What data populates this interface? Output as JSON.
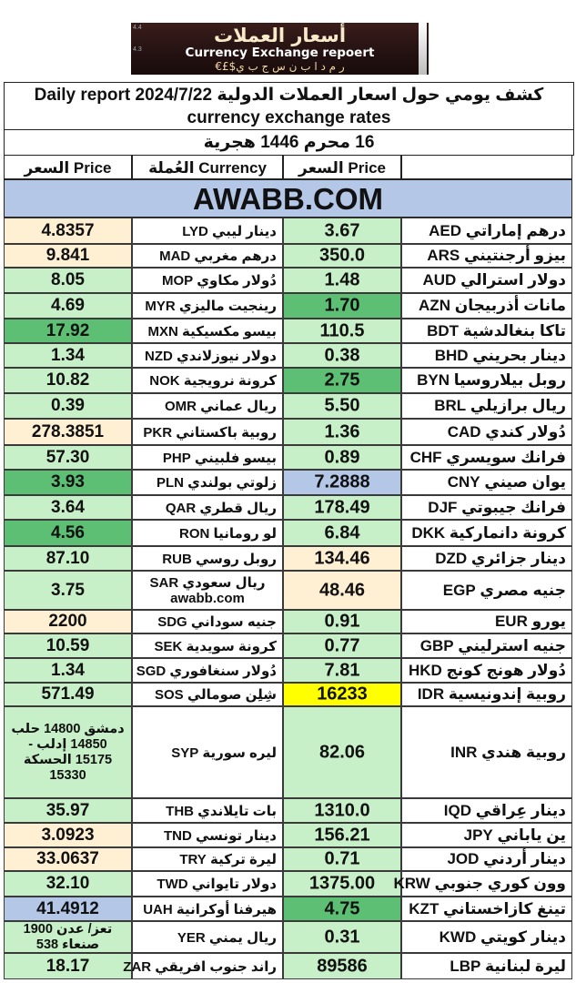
{
  "logo": {
    "arabic": "أسعار العملات",
    "english": "Currency Exchange repoert",
    "subline": "€£$ر م د ا ب ن س ج ب ي",
    "corner_top": "4.4",
    "corner_bottom": "4.3"
  },
  "title": {
    "line1": "كشف يومي حول اسعار العملات الدولية Daily report 2024/7/22",
    "line2": "currency exchange rates"
  },
  "hijri_date": "16 محرم  1446 هجرية",
  "headers": {
    "price_left": "السعر Price",
    "currency_left": "العُملة Currency",
    "price_right": "السعر Price"
  },
  "banner": "AWABB.COM",
  "colors": {
    "green": "#5cbf73",
    "light_green": "#c8f0c8",
    "peach": "#fff0d4",
    "yellow": "#ffff00",
    "blue": "#b4c7e7",
    "white": "#ffffff"
  },
  "rows": [
    {
      "r_cur": "درهم إماراتي  AED",
      "r_price": "3.67",
      "r_bg": "light_green",
      "l_cur": "دينار ليبي  LYD",
      "l_price": "4.8357",
      "l_bg": "peach"
    },
    {
      "r_cur": "بيزو أرجنتيني  ARS",
      "r_price": "350.0",
      "r_bg": "light_green",
      "l_cur": "درهم مغربي  MAD",
      "l_price": "9.841",
      "l_bg": "peach"
    },
    {
      "r_cur": "دولار استرالي  AUD",
      "r_price": "1.48",
      "r_bg": "light_green",
      "l_cur": "دُولار مكاوي  MOP",
      "l_price": "8.05",
      "l_bg": "light_green"
    },
    {
      "r_cur": "مانات أذربيجان  AZN",
      "r_price": "1.70",
      "r_bg": "green",
      "l_cur": "رينجيت ماليزي  MYR",
      "l_price": "4.69",
      "l_bg": "light_green"
    },
    {
      "r_cur": "تاكا بنغالدشية  BDT",
      "r_price": "110.5",
      "r_bg": "light_green",
      "l_cur": "بيسو مكسيكية  MXN",
      "l_price": "17.92",
      "l_bg": "green"
    },
    {
      "r_cur": "دينار بحريني  BHD",
      "r_price": "0.38",
      "r_bg": "light_green",
      "l_cur": "دولار نيوزلاندي NZD",
      "l_price": "1.34",
      "l_bg": "light_green"
    },
    {
      "r_cur": "روبل بيلاروسيا  BYN",
      "r_price": "2.75",
      "r_bg": "green",
      "l_cur": "كرونة نرويجية  NOK",
      "l_price": "10.82",
      "l_bg": "light_green"
    },
    {
      "r_cur": "ريال برازيلي  BRL",
      "r_price": "5.50",
      "r_bg": "light_green",
      "l_cur": "ريال عماني  OMR",
      "l_price": "0.39",
      "l_bg": "light_green"
    },
    {
      "r_cur": "دُولار كندي  CAD",
      "r_price": "1.36",
      "r_bg": "light_green",
      "l_cur": "روبية باكستاني  PKR",
      "l_price": "278.3851",
      "l_bg": "peach"
    },
    {
      "r_cur": "فرانك سويسري  CHF",
      "r_price": "0.89",
      "r_bg": "light_green",
      "l_cur": "بيسو فلبيني  PHP",
      "l_price": "57.30",
      "l_bg": "light_green"
    },
    {
      "r_cur": "يوان صيني  CNY",
      "r_price": "7.2888",
      "r_bg": "blue",
      "l_cur": "زلوتي بولندي  PLN",
      "l_price": "3.93",
      "l_bg": "green"
    },
    {
      "r_cur": "فرانك جيبوتي  DJF",
      "r_price": "178.49",
      "r_bg": "light_green",
      "l_cur": "ريال قطري  QAR",
      "l_price": "3.64",
      "l_bg": "light_green"
    },
    {
      "r_cur": "كرونة دانماركية  DKK",
      "r_price": "6.84",
      "r_bg": "light_green",
      "l_cur": "لو رومانيا  RON",
      "l_price": "4.56",
      "l_bg": "green"
    },
    {
      "r_cur": "دينار جزائري  DZD",
      "r_price": "134.46",
      "r_bg": "peach",
      "l_cur": "روبل روسي  RUB",
      "l_price": "87.10",
      "l_bg": "light_green"
    },
    {
      "r_cur": "جنيه مصري  EGP",
      "r_price": "48.46",
      "r_bg": "peach",
      "l_cur": "ريال سعودي  SAR\nawabb.com",
      "l_price": "3.75",
      "l_bg": "light_green"
    },
    {
      "r_cur": "يورو  EUR",
      "r_price": "0.91",
      "r_bg": "light_green",
      "l_cur": "جنيه سوداني  SDG",
      "l_price": "2200",
      "l_bg": "peach"
    },
    {
      "r_cur": "جنيه استرليني  GBP",
      "r_price": "0.77",
      "r_bg": "light_green",
      "l_cur": "كرونة سويدية  SEK",
      "l_price": "10.59",
      "l_bg": "light_green"
    },
    {
      "r_cur": "دُولار هونج كونج  HKD",
      "r_price": "7.81",
      "r_bg": "light_green",
      "l_cur": "دُولار سنغافوري  SGD",
      "l_price": "1.34",
      "l_bg": "light_green"
    },
    {
      "r_cur": "روبية إندونيسية  IDR",
      "r_price": "16233",
      "r_bg": "yellow",
      "l_cur": "شِلِن صومالي  SOS",
      "l_price": "571.49",
      "l_bg": "light_green"
    },
    {
      "r_cur": "روبية هندي  INR",
      "r_price": "82.06",
      "r_bg": "light_green",
      "l_cur": "ليره سورية  SYP",
      "l_price": "دمشق 14800 حلب\n14850 إدلب -\n15175 الحسكة\n15330",
      "l_bg": "light_green"
    },
    {
      "r_cur": "دينار عِراقي  IQD",
      "r_price": "1310.0",
      "r_bg": "light_green",
      "l_cur": "بات تايلاندي  THB",
      "l_price": "35.97",
      "l_bg": "light_green"
    },
    {
      "r_cur": "ين ياباني  JPY",
      "r_price": "156.21",
      "r_bg": "light_green",
      "l_cur": "دينار تونسي  TND",
      "l_price": "3.0923",
      "l_bg": "peach"
    },
    {
      "r_cur": "دينار أردني  JOD",
      "r_price": "0.71",
      "r_bg": "light_green",
      "l_cur": "ليرة تركية  TRY",
      "l_price": "33.0637",
      "l_bg": "peach"
    },
    {
      "r_cur": "وون كوري جنوبي  KRW",
      "r_price": "1375.00",
      "r_bg": "light_green",
      "l_cur": "دولار تايواني  TWD",
      "l_price": "32.10",
      "l_bg": "light_green"
    },
    {
      "r_cur": "تينغ كازاخستاني  KZT",
      "r_price": "4.75",
      "r_bg": "green",
      "l_cur": "هيرفنا أوكرانية  UAH",
      "l_price": "41.4912",
      "l_bg": "blue"
    },
    {
      "r_cur": "دينار كويتي  KWD",
      "r_price": "0.31",
      "r_bg": "light_green",
      "l_cur": "ريال يمني  YER",
      "l_price": "تعز/ عدن 1900\nصنعاء 538",
      "l_bg": "light_green"
    },
    {
      "r_cur": "ليرة لبنانية  LBP",
      "r_price": "89586",
      "r_bg": "light_green",
      "l_cur": "راند جنوب افريقي  ZAR",
      "l_price": "18.17",
      "l_bg": "light_green"
    }
  ]
}
